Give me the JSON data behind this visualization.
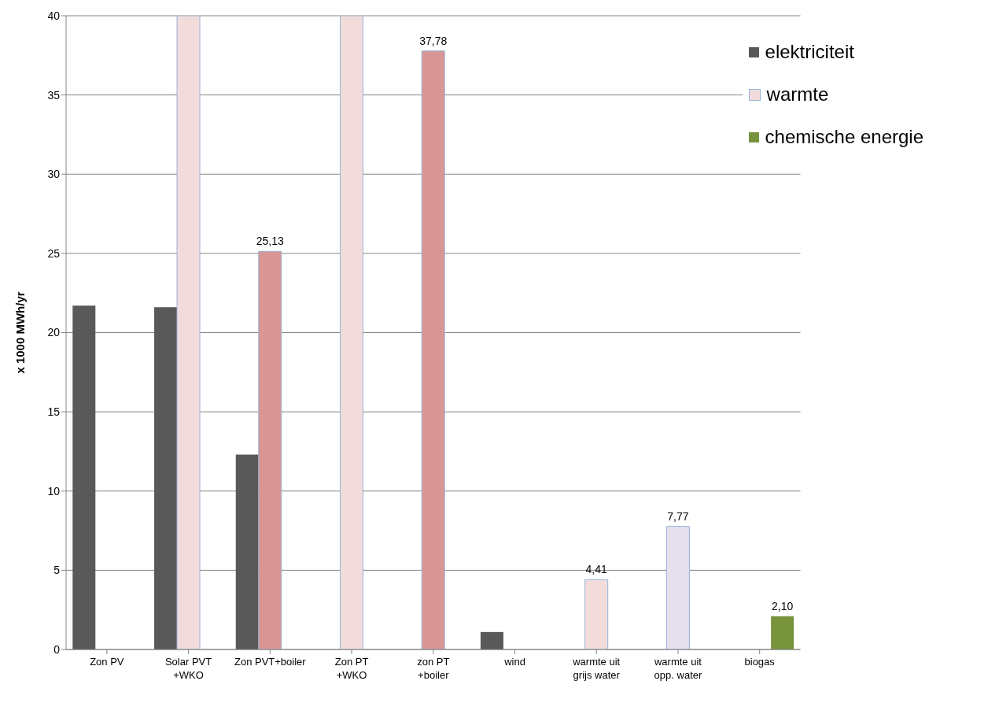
{
  "chart_data": {
    "type": "bar",
    "ylabel": "x 1000 MWh/yr",
    "categories": [
      "Zon PV",
      "Solar PVT\n+WKO",
      "Zon PVT+boiler",
      "Zon PT\n+WKO",
      "zon PT\n+boiler",
      "wind",
      "warmte uit\ngrijs water",
      "warmte uit\nopp. water",
      "biogas"
    ],
    "series": [
      {
        "name": "elektriciteit",
        "color": "#595959",
        "values": [
          21.7,
          21.6,
          12.3,
          null,
          null,
          1.1,
          null,
          null,
          null
        ]
      },
      {
        "name": "warmte",
        "color": "#f2dcdb",
        "colors": [
          "#f2dcdb",
          "#f2dcdb",
          "#d99694",
          "#f2dcdb",
          "#d99694",
          "#f2dcdb",
          "#f2dcdb",
          "#e6e0ec",
          "#f2dcdb"
        ],
        "values": [
          null,
          40,
          25.13,
          40,
          37.78,
          null,
          4.41,
          7.77,
          null
        ],
        "value_labels": [
          null,
          null,
          "25,13",
          null,
          "37,78",
          null,
          "4,41",
          "7,77",
          null
        ]
      },
      {
        "name": "chemische energie",
        "color": "#77933c",
        "values": [
          null,
          null,
          null,
          null,
          null,
          null,
          null,
          null,
          2.1
        ],
        "value_labels": [
          null,
          null,
          null,
          null,
          null,
          null,
          null,
          null,
          "2,10"
        ]
      }
    ],
    "ylim": [
      0,
      40
    ],
    "yticks": [
      0,
      5,
      10,
      15,
      20,
      25,
      30,
      35,
      40
    ],
    "grid": "y",
    "legend": "top right"
  }
}
